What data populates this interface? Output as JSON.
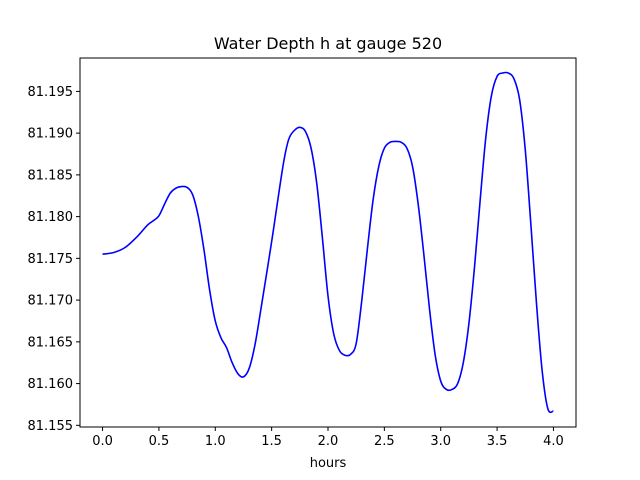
{
  "chart_data": {
    "type": "line",
    "title": "Water Depth h at gauge 520",
    "xlabel": "hours",
    "ylabel": "",
    "xlim": [
      -0.2,
      4.2
    ],
    "ylim": [
      81.1548,
      81.199
    ],
    "xticks": [
      0.0,
      0.5,
      1.0,
      1.5,
      2.0,
      2.5,
      3.0,
      3.5,
      4.0
    ],
    "xtick_labels": [
      "0.0",
      "0.5",
      "1.0",
      "1.5",
      "2.0",
      "2.5",
      "3.0",
      "3.5",
      "4.0"
    ],
    "yticks": [
      81.155,
      81.16,
      81.165,
      81.17,
      81.175,
      81.18,
      81.185,
      81.19,
      81.195
    ],
    "ytick_labels": [
      "81.155",
      "81.160",
      "81.165",
      "81.170",
      "81.175",
      "81.180",
      "81.185",
      "81.190",
      "81.195"
    ],
    "grid": false,
    "series": [
      {
        "color": "#0000ff",
        "x": [
          0.0,
          0.1,
          0.2,
          0.3,
          0.4,
          0.45,
          0.5,
          0.55,
          0.6,
          0.65,
          0.7,
          0.75,
          0.8,
          0.85,
          0.9,
          0.95,
          1.0,
          1.05,
          1.1,
          1.15,
          1.2,
          1.25,
          1.3,
          1.35,
          1.4,
          1.5,
          1.6,
          1.65,
          1.7,
          1.75,
          1.8,
          1.85,
          1.9,
          1.95,
          2.0,
          2.05,
          2.1,
          2.15,
          2.2,
          2.25,
          2.3,
          2.35,
          2.4,
          2.45,
          2.5,
          2.55,
          2.6,
          2.65,
          2.7,
          2.75,
          2.8,
          2.85,
          2.9,
          2.95,
          3.0,
          3.05,
          3.1,
          3.15,
          3.2,
          3.25,
          3.3,
          3.35,
          3.4,
          3.45,
          3.5,
          3.55,
          3.6,
          3.65,
          3.7,
          3.75,
          3.8,
          3.85,
          3.9,
          3.95,
          4.0
        ],
        "y": [
          81.1755,
          81.1757,
          81.1763,
          81.1775,
          81.179,
          81.1795,
          81.1801,
          81.1815,
          81.1828,
          81.1834,
          81.1836,
          81.1835,
          81.1826,
          81.18,
          81.176,
          81.1712,
          81.1675,
          81.1655,
          81.1643,
          81.1625,
          81.1612,
          81.1608,
          81.1618,
          81.1645,
          81.1685,
          81.177,
          81.186,
          81.1892,
          81.1903,
          81.1907,
          81.1902,
          81.1882,
          81.184,
          81.1775,
          81.1705,
          81.166,
          81.164,
          81.1634,
          81.1635,
          81.1648,
          81.17,
          81.1762,
          81.182,
          81.186,
          81.1882,
          81.1889,
          81.189,
          81.1889,
          81.1882,
          81.186,
          81.1815,
          81.1755,
          81.169,
          81.1635,
          81.1603,
          81.1593,
          81.1593,
          81.16,
          81.1625,
          81.1672,
          81.174,
          81.182,
          81.1895,
          81.1945,
          81.1968,
          81.1972,
          81.1972,
          81.1965,
          81.194,
          81.188,
          81.179,
          81.1695,
          81.1615,
          81.157,
          81.1567
        ]
      }
    ]
  }
}
